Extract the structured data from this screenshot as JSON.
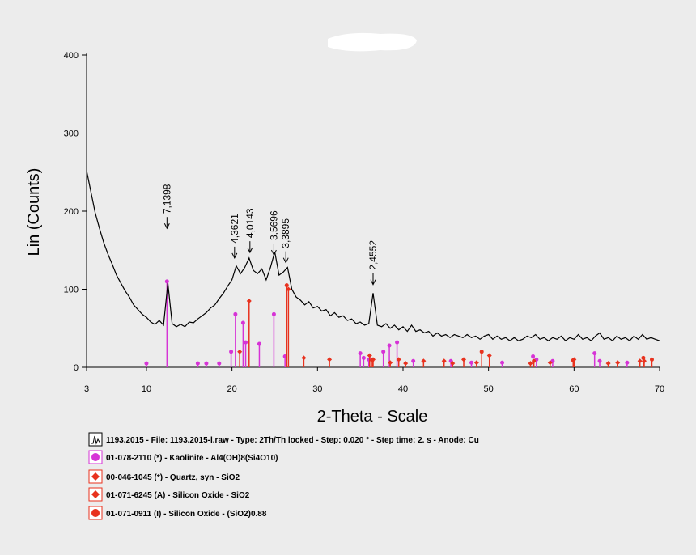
{
  "chart_data": {
    "type": "xrd",
    "xlabel": "2-Theta - Scale",
    "ylabel": "Lin (Counts)",
    "xlim": [
      3,
      70
    ],
    "ylim": [
      0,
      400
    ],
    "xticks": [
      3,
      10,
      20,
      30,
      40,
      50,
      60,
      70
    ],
    "yticks": [
      0,
      100,
      200,
      300,
      400
    ],
    "pattern": {
      "name": "1193.2015 - File: 1193.2015-l.raw - Type: 2Th/Th locked - Step: 0.020 ° - Step time: 2. s - Anode: Cu",
      "color": "#000000",
      "x": [
        3,
        3.5,
        4,
        4.5,
        5,
        5.5,
        6,
        6.5,
        7,
        7.5,
        8,
        8.5,
        9,
        9.5,
        10,
        10.5,
        11,
        11.5,
        12,
        12.5,
        13,
        13.5,
        14,
        14.5,
        15,
        15.5,
        16,
        16.5,
        17,
        17.5,
        18,
        18.5,
        19,
        19.5,
        20,
        20.5,
        21,
        21.5,
        22,
        22.5,
        23,
        23.5,
        24,
        24.5,
        25,
        25.5,
        26,
        26.5,
        27,
        27.5,
        28,
        28.5,
        29,
        29.5,
        30,
        30.5,
        31,
        31.5,
        32,
        32.5,
        33,
        33.5,
        34,
        34.5,
        35,
        35.5,
        36,
        36.5,
        37,
        37.5,
        38,
        38.5,
        39,
        39.5,
        40,
        40.5,
        41,
        41.5,
        42,
        42.5,
        43,
        43.5,
        44,
        44.5,
        45,
        45.5,
        46,
        46.5,
        47,
        47.5,
        48,
        48.5,
        49,
        49.5,
        50,
        50.5,
        51,
        51.5,
        52,
        52.5,
        53,
        53.5,
        54,
        54.5,
        55,
        55.5,
        56,
        56.5,
        57,
        57.5,
        58,
        58.5,
        59,
        59.5,
        60,
        60.5,
        61,
        61.5,
        62,
        62.5,
        63,
        63.5,
        64,
        64.5,
        65,
        65.5,
        66,
        66.5,
        67,
        67.5,
        68,
        68.5,
        69,
        69.5,
        70
      ],
      "values": [
        252,
        225,
        198,
        178,
        160,
        145,
        132,
        118,
        108,
        98,
        90,
        80,
        74,
        68,
        64,
        58,
        55,
        60,
        54,
        108,
        56,
        52,
        55,
        52,
        58,
        57,
        62,
        66,
        70,
        76,
        80,
        88,
        95,
        104,
        112,
        130,
        120,
        128,
        140,
        124,
        120,
        126,
        112,
        128,
        148,
        118,
        122,
        128,
        100,
        90,
        86,
        80,
        84,
        76,
        78,
        72,
        74,
        66,
        70,
        64,
        66,
        60,
        62,
        56,
        58,
        54,
        56,
        95,
        54,
        52,
        56,
        50,
        54,
        48,
        52,
        46,
        54,
        46,
        48,
        44,
        46,
        40,
        44,
        40,
        42,
        38,
        42,
        40,
        38,
        42,
        38,
        40,
        36,
        40,
        42,
        36,
        40,
        36,
        38,
        34,
        38,
        34,
        36,
        40,
        38,
        42,
        36,
        38,
        34,
        38,
        36,
        40,
        34,
        38,
        36,
        42,
        36,
        38,
        34,
        40,
        44,
        36,
        38,
        34,
        40,
        36,
        38,
        34,
        40,
        36,
        42,
        36,
        38,
        36,
        34
      ]
    },
    "annotations": [
      {
        "label": "7,1398",
        "x": 12.4,
        "y": 178
      },
      {
        "label": "4,3621",
        "x": 20.3,
        "y": 140
      },
      {
        "label": "4,0143",
        "x": 22.1,
        "y": 147
      },
      {
        "label": "3,5696",
        "x": 24.9,
        "y": 144
      },
      {
        "label": "3,3895",
        "x": 26.3,
        "y": 134
      },
      {
        "label": "2,4552",
        "x": 36.5,
        "y": 106
      }
    ],
    "phases": [
      {
        "name": "01-078-2110 (*) - Kaolinite - Al4(OH)8(Si4O10)",
        "color": "#d633d6",
        "marker": "circle",
        "x": [
          10,
          12.4,
          16,
          17,
          18.5,
          19.9,
          20.4,
          21.3,
          21.6,
          23.2,
          24.9,
          26.2,
          35.0,
          35.4,
          36.0,
          37.7,
          38.4,
          39.3,
          41.2,
          45.6,
          48,
          51.6,
          55.2,
          55.6,
          57.5,
          62.4,
          63,
          66.2
        ],
        "values": [
          5,
          110,
          5,
          5,
          5,
          20,
          68,
          57,
          32,
          30,
          68,
          14,
          18,
          12,
          10,
          20,
          28,
          32,
          8,
          8,
          6,
          6,
          14,
          10,
          8,
          18,
          8,
          6
        ]
      },
      {
        "name": "00-046-1045 (*) - Quartz, syn - SiO2",
        "color": "#e8321e",
        "marker": "diamond",
        "x": [
          20.9,
          26.6,
          36.5,
          39.5,
          40.3,
          42.4,
          45.8,
          50.1,
          54.9,
          60,
          64,
          67.7,
          68.2
        ],
        "values": [
          20,
          100,
          10,
          10,
          5,
          8,
          5,
          15,
          5,
          10,
          5,
          8,
          8
        ]
      },
      {
        "name": "01-071-6245 (A) - Silicon Oxide - SiO2",
        "color": "#e8321e",
        "marker": "diamond",
        "x": [
          22.0,
          28.4,
          31.4,
          36.1,
          38.5,
          44.8,
          47.1,
          48.6,
          57.2,
          65.1
        ],
        "values": [
          85,
          12,
          10,
          15,
          6,
          8,
          10,
          6,
          6,
          6
        ]
      },
      {
        "name": "01-071-0911 (I) - Silicon Oxide - (SiO2)0.88",
        "color": "#e8321e",
        "marker": "circle",
        "x": [
          26.4,
          36.4,
          49.2,
          55.3,
          59.9,
          68.1,
          69.1
        ],
        "values": [
          105,
          9,
          20,
          8,
          9,
          12,
          10
        ]
      }
    ]
  }
}
